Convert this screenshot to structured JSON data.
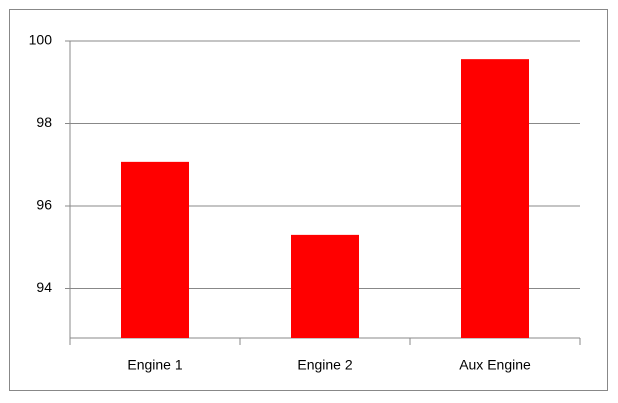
{
  "chart_data": {
    "type": "bar",
    "categories": [
      "Engine 1",
      "Engine 2",
      "Aux Engine"
    ],
    "values": [
      97.07,
      95.3,
      99.56
    ],
    "color": "#ff0000",
    "ylim": [
      92.8,
      100
    ],
    "yticks": [
      94,
      96,
      98,
      100
    ],
    "grid": true
  }
}
